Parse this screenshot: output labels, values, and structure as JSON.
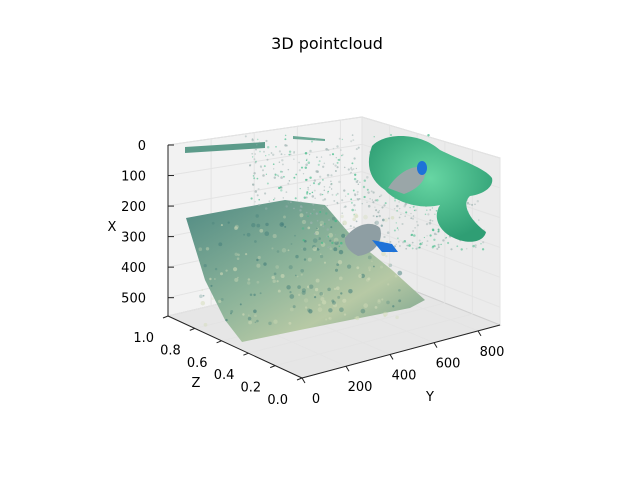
{
  "chart_data": {
    "type": "scatter",
    "title": "3D pointcloud",
    "projection": "3d",
    "grid": true,
    "axes": {
      "x": {
        "label": "X",
        "ticks": [
          0,
          100,
          200,
          300,
          400,
          500
        ],
        "range": [
          0,
          560
        ],
        "inverted": true
      },
      "y": {
        "label": "Y",
        "ticks": [
          0,
          200,
          400,
          600,
          800
        ],
        "range": [
          0,
          900
        ]
      },
      "z": {
        "label": "Z",
        "ticks": [
          "0.0",
          "0.2",
          "0.4",
          "0.6",
          "0.8",
          "1.0"
        ],
        "range": [
          0,
          1
        ]
      }
    },
    "series": [
      {
        "color": "#5c9b8a"
      },
      {
        "color": "#3dba86"
      },
      {
        "color": "#9db2b0"
      },
      {
        "color": "#1e72d8"
      }
    ]
  }
}
